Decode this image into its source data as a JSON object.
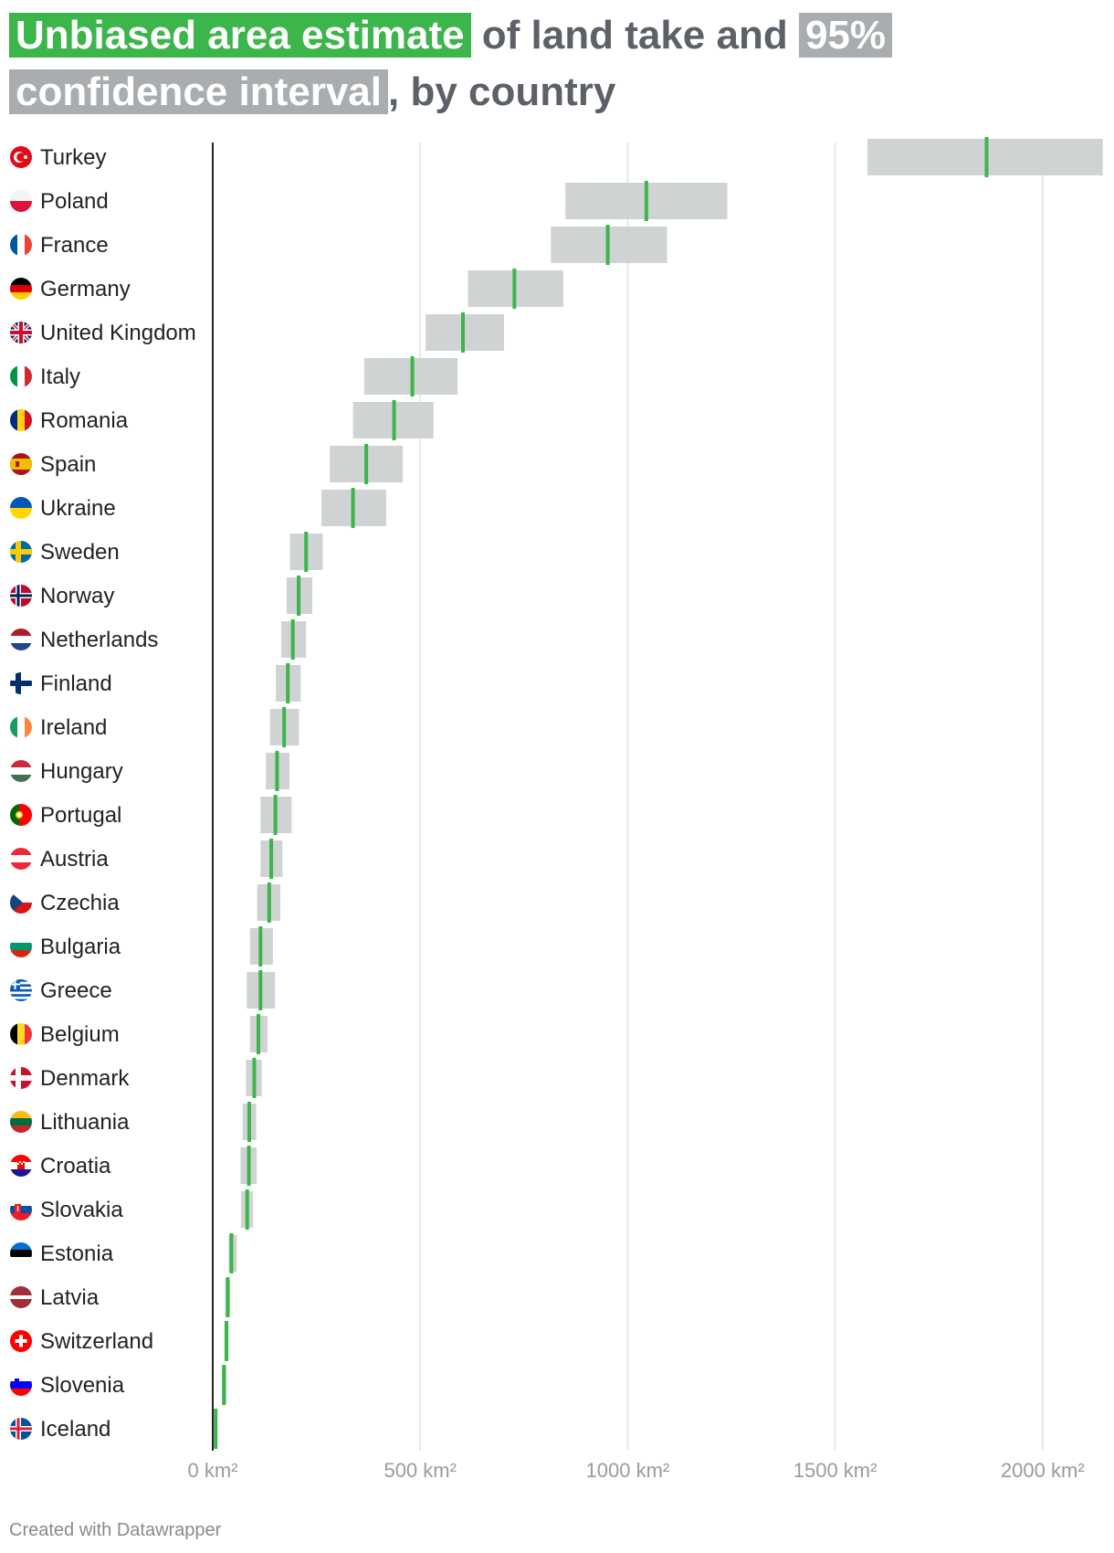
{
  "title": {
    "part1": "Unbiased area estimate",
    "part2": " of land take and ",
    "part3": "95% confidence interval",
    "part4": ", by country"
  },
  "footer": "Created with Datawrapper",
  "colors": {
    "estimate": "#3cb54a",
    "interval": "#d0d3d4",
    "axis": "#222222",
    "grid": "#e2e2e2",
    "title": "#5b6167"
  },
  "chart_data": {
    "type": "range-dot",
    "title": "Unbiased area estimate of land take and 95% confidence interval, by country",
    "xlabel": "",
    "ylabel": "",
    "unit": "km²",
    "xlim": [
      0,
      2150
    ],
    "xticks": [
      0,
      500,
      1000,
      1500,
      2000
    ],
    "tick_labels": [
      "0 km²",
      "500 km²",
      "1000 km²",
      "1500 km²",
      "2000 km²"
    ],
    "grid": true,
    "series": [
      {
        "name": "Unbiased area estimate",
        "color": "#3cb54a"
      },
      {
        "name": "95% confidence interval",
        "color": "#a9adaf"
      }
    ],
    "countries": [
      {
        "name": "Turkey",
        "flag": "turkey-flag-icon",
        "estimate": 1865,
        "low": 1578,
        "high": 2145
      },
      {
        "name": "Poland",
        "flag": "poland-flag-icon",
        "estimate": 1045,
        "low": 850,
        "high": 1240
      },
      {
        "name": "France",
        "flag": "france-flag-icon",
        "estimate": 952,
        "low": 815,
        "high": 1095
      },
      {
        "name": "Germany",
        "flag": "germany-flag-icon",
        "estimate": 727,
        "low": 615,
        "high": 845
      },
      {
        "name": "United Kingdom",
        "flag": "uk-flag-icon",
        "estimate": 603,
        "low": 513,
        "high": 702
      },
      {
        "name": "Italy",
        "flag": "italy-flag-icon",
        "estimate": 481,
        "low": 365,
        "high": 590
      },
      {
        "name": "Romania",
        "flag": "romania-flag-icon",
        "estimate": 437,
        "low": 338,
        "high": 532
      },
      {
        "name": "Spain",
        "flag": "spain-flag-icon",
        "estimate": 370,
        "low": 282,
        "high": 458
      },
      {
        "name": "Ukraine",
        "flag": "ukraine-flag-icon",
        "estimate": 338,
        "low": 262,
        "high": 418
      },
      {
        "name": "Sweden",
        "flag": "sweden-flag-icon",
        "estimate": 225,
        "low": 186,
        "high": 265
      },
      {
        "name": "Norway",
        "flag": "norway-flag-icon",
        "estimate": 207,
        "low": 178,
        "high": 240
      },
      {
        "name": "Netherlands",
        "flag": "netherlands-flag-icon",
        "estimate": 193,
        "low": 165,
        "high": 225
      },
      {
        "name": "Finland",
        "flag": "finland-flag-icon",
        "estimate": 181,
        "low": 152,
        "high": 212
      },
      {
        "name": "Ireland",
        "flag": "ireland-flag-icon",
        "estimate": 172,
        "low": 138,
        "high": 208
      },
      {
        "name": "Hungary",
        "flag": "hungary-flag-icon",
        "estimate": 155,
        "low": 128,
        "high": 185
      },
      {
        "name": "Portugal",
        "flag": "portugal-flag-icon",
        "estimate": 151,
        "low": 115,
        "high": 190
      },
      {
        "name": "Austria",
        "flag": "austria-flag-icon",
        "estimate": 141,
        "low": 115,
        "high": 168
      },
      {
        "name": "Czechia",
        "flag": "czechia-flag-icon",
        "estimate": 136,
        "low": 107,
        "high": 163
      },
      {
        "name": "Bulgaria",
        "flag": "bulgaria-flag-icon",
        "estimate": 115,
        "low": 90,
        "high": 145
      },
      {
        "name": "Greece",
        "flag": "greece-flag-icon",
        "estimate": 115,
        "low": 82,
        "high": 150
      },
      {
        "name": "Belgium",
        "flag": "belgium-flag-icon",
        "estimate": 110,
        "low": 90,
        "high": 132
      },
      {
        "name": "Denmark",
        "flag": "denmark-flag-icon",
        "estimate": 100,
        "low": 80,
        "high": 118
      },
      {
        "name": "Lithuania",
        "flag": "lithuania-flag-icon",
        "estimate": 88,
        "low": 72,
        "high": 105
      },
      {
        "name": "Croatia",
        "flag": "croatia-flag-icon",
        "estimate": 87,
        "low": 67,
        "high": 106
      },
      {
        "name": "Slovakia",
        "flag": "slovakia-flag-icon",
        "estimate": 83,
        "low": 68,
        "high": 97
      },
      {
        "name": "Estonia",
        "flag": "estonia-flag-icon",
        "estimate": 45,
        "low": 38,
        "high": 58
      },
      {
        "name": "Latvia",
        "flag": "latvia-flag-icon",
        "estimate": 36,
        "low": 30,
        "high": 42
      },
      {
        "name": "Switzerland",
        "flag": "switzerland-flag-icon",
        "estimate": 33,
        "low": 28,
        "high": 38
      },
      {
        "name": "Slovenia",
        "flag": "slovenia-flag-icon",
        "estimate": 27,
        "low": 22,
        "high": 33
      },
      {
        "name": "Iceland",
        "flag": "iceland-flag-icon",
        "estimate": 7,
        "low": 4,
        "high": 11
      }
    ]
  }
}
